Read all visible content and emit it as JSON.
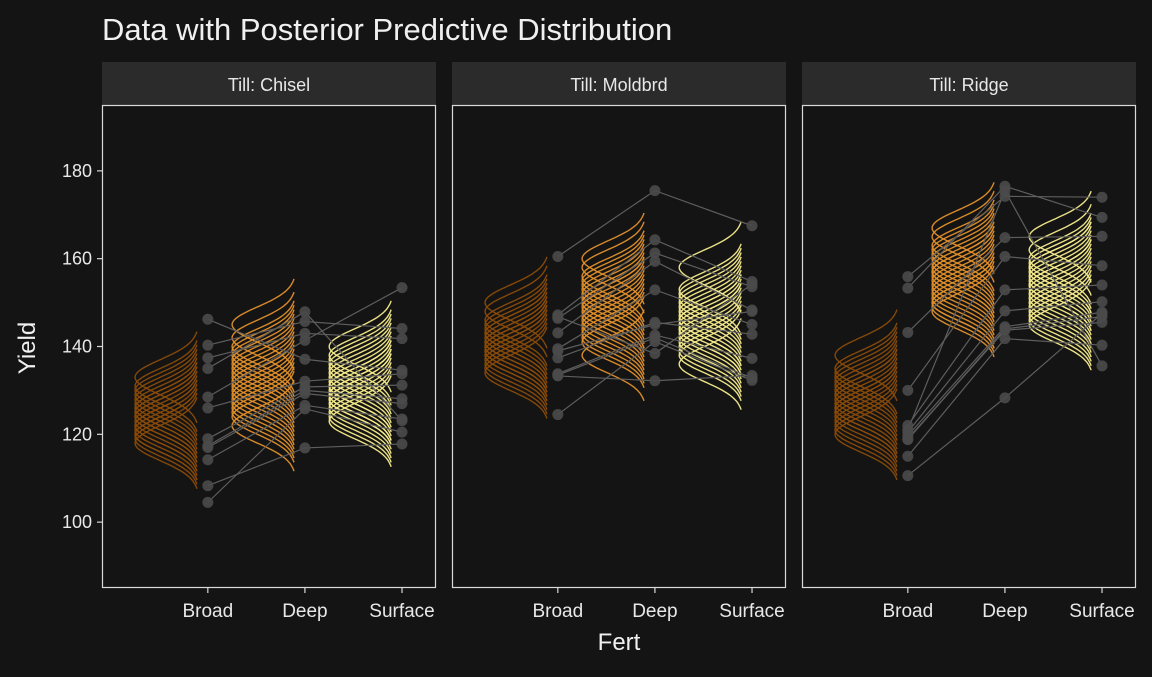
{
  "chart_data": {
    "type": "line",
    "title": "Data with Posterior Predictive Distribution",
    "xlabel": "Fert",
    "ylabel": "Yield",
    "categories": [
      "Broad",
      "Deep",
      "Surface"
    ],
    "ylim": [
      85,
      195
    ],
    "yticks": [
      100,
      120,
      140,
      160,
      180
    ],
    "xlim": [
      -0.09,
      3.35
    ],
    "grid": false,
    "legend": "none",
    "colors": {
      "background": "#141414",
      "strip": "#2b2b2b",
      "border": "#d9d9d9",
      "text": "#f0f0f0",
      "points": "#4a4a4a",
      "lines": "#5e5e5e",
      "Broad": "#8a4b08",
      "Deep": "#e3902a",
      "Surface": "#f7ec8c"
    },
    "facets": [
      {
        "label": "Till: Chisel",
        "observations": [
          [
            146.2,
            137.1,
            134.6
          ],
          [
            140.3,
            145.7,
            144.1
          ],
          [
            137.4,
            143.0,
            141.8
          ],
          [
            135.0,
            147.9,
            123.1
          ],
          [
            128.5,
            141.4,
            153.4
          ],
          [
            126.0,
            132.1,
            133.8
          ],
          [
            119.0,
            130.8,
            131.2
          ],
          [
            117.4,
            130.0,
            128.1
          ],
          [
            117.0,
            129.3,
            127.0
          ],
          [
            114.2,
            126.6,
            123.5
          ],
          [
            108.3,
            116.9,
            117.8
          ],
          [
            104.5,
            125.8,
            120.5
          ]
        ],
        "predictive": {
          "sd": 4,
          "Broad": [
            125,
            122,
            128,
            120,
            126,
            131,
            124,
            119,
            127,
            123,
            121,
            129,
            125,
            133,
            118,
            126,
            122,
            124,
            130,
            120
          ],
          "Deep": [
            134,
            128,
            140,
            125,
            137,
            131,
            145,
            122,
            136,
            129,
            139,
            133,
            126,
            142,
            130,
            135,
            127,
            138,
            132,
            124
          ],
          "Surface": [
            131,
            126,
            135,
            129,
            138,
            124,
            133,
            128,
            136,
            130,
            127,
            140,
            125,
            132,
            134,
            129,
            137,
            123,
            131,
            128
          ]
        }
      },
      {
        "label": "Till: Moldbrd",
        "observations": [
          [
            160.5,
            175.5,
            167.5
          ],
          [
            147.2,
            164.3,
            154.8
          ],
          [
            146.4,
            161.3,
            153.6
          ],
          [
            143.1,
            159.4,
            148.3
          ],
          [
            139.5,
            152.9,
            145.0
          ],
          [
            137.4,
            145.5,
            142.8
          ],
          [
            133.8,
            142.6,
            137.3
          ],
          [
            133.3,
            132.2,
            133.4
          ],
          [
            124.5,
            141.1,
            132.3
          ],
          [
            146.8,
            138.4,
            154.2
          ],
          [
            133.5,
            142.0,
            132.8
          ],
          [
            139.0,
            145.0,
            148.0
          ]
        ],
        "predictive": {
          "sd": 4,
          "Broad": [
            141,
            137,
            145,
            139,
            143,
            135,
            148,
            140,
            138,
            144,
            136,
            142,
            150,
            139,
            141,
            146,
            134,
            143,
            138,
            140
          ],
          "Deep": [
            150,
            146,
            155,
            143,
            152,
            148,
            158,
            141,
            151,
            147,
            154,
            144,
            160,
            149,
            145,
            153,
            138,
            150,
            156,
            142
          ],
          "Surface": [
            146,
            142,
            150,
            139,
            148,
            144,
            153,
            141,
            147,
            158,
            136,
            145,
            149,
            143,
            151,
            140,
            146,
            152,
            138,
            144
          ]
        }
      },
      {
        "label": "Till: Ridge",
        "observations": [
          [
            155.9,
            174.2,
            174.0
          ],
          [
            153.3,
            176.5,
            169.4
          ],
          [
            143.2,
            164.8,
            165.1
          ],
          [
            130.0,
            160.5,
            158.4
          ],
          [
            122.0,
            152.9,
            154.0
          ],
          [
            120.5,
            148.1,
            150.2
          ],
          [
            119.7,
            144.5,
            147.8
          ],
          [
            119.0,
            143.7,
            145.5
          ],
          [
            115.0,
            141.8,
            140.3
          ],
          [
            110.6,
            128.3,
            147.5
          ],
          [
            121.0,
            175.5,
            135.6
          ],
          [
            118.8,
            144.0,
            146.8
          ]
        ],
        "predictive": {
          "sd": 4,
          "Broad": [
            128,
            124,
            132,
            122,
            130,
            126,
            135,
            121,
            129,
            125,
            133,
            127,
            138,
            123,
            131,
            126,
            120,
            129,
            134,
            125
          ],
          "Deep": [
            157,
            153,
            161,
            150,
            159,
            155,
            165,
            149,
            158,
            152,
            163,
            156,
            167,
            151,
            160,
            154,
            148,
            162,
            157,
            150
          ],
          "Surface": [
            154,
            150,
            158,
            148,
            156,
            152,
            162,
            147,
            155,
            160,
            146,
            153,
            165,
            151,
            157,
            149,
            159,
            154,
            145,
            158
          ]
        }
      }
    ]
  }
}
